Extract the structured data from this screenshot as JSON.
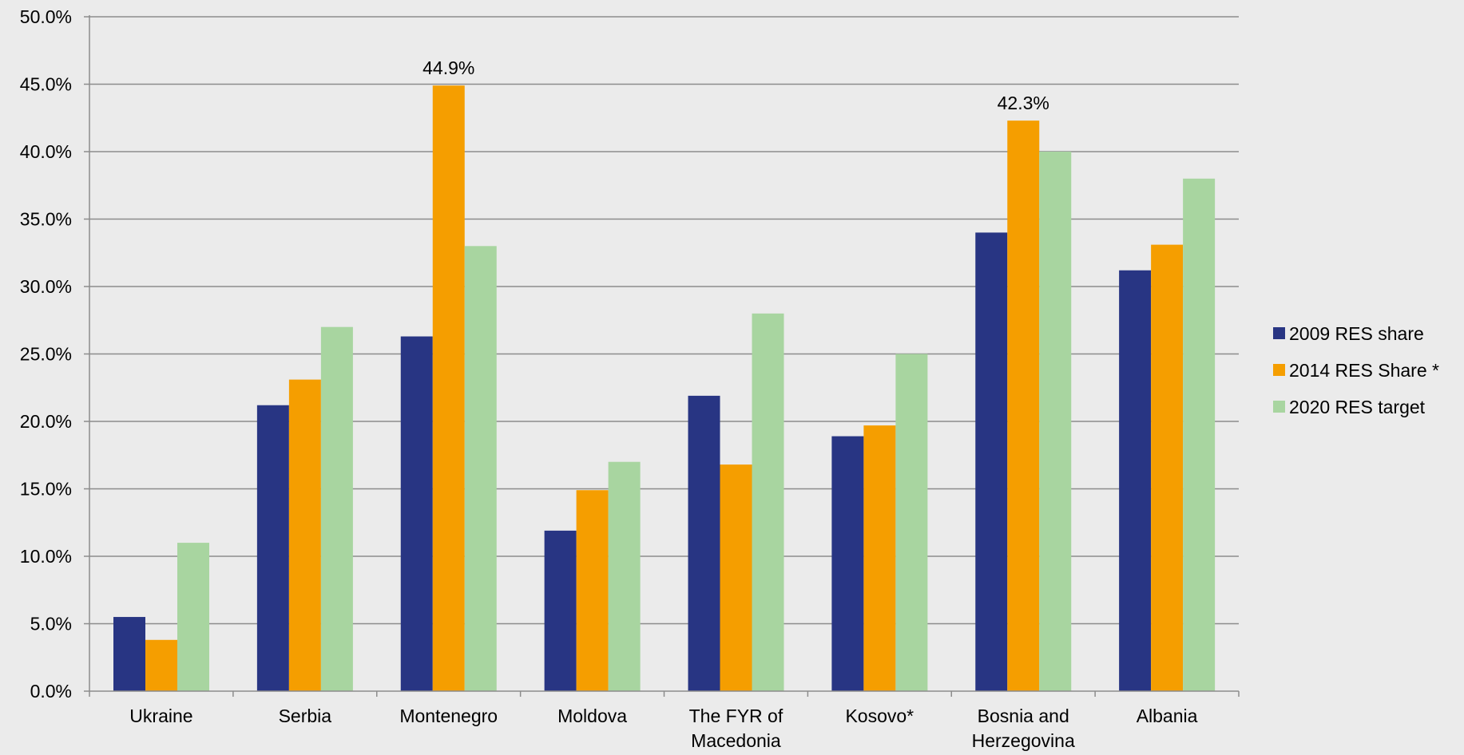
{
  "chart_data": {
    "type": "bar",
    "title": "",
    "xlabel": "",
    "ylabel": "",
    "categories": [
      "Ukraine",
      "Serbia",
      "Montenegro",
      "Moldova",
      "The FYR of Macedonia",
      "Kosovo*",
      "Bosnia and Herzegovina",
      "Albania"
    ],
    "category_lines": [
      [
        "Ukraine"
      ],
      [
        "Serbia"
      ],
      [
        "Montenegro"
      ],
      [
        "Moldova"
      ],
      [
        "The FYR of",
        "Macedonia"
      ],
      [
        "Kosovo*"
      ],
      [
        "Bosnia and",
        "Herzegovina"
      ],
      [
        "Albania"
      ]
    ],
    "series": [
      {
        "name": "2009 RES share",
        "color": "#283583",
        "values": [
          5.5,
          21.2,
          26.3,
          11.9,
          21.9,
          18.9,
          34.0,
          31.2
        ]
      },
      {
        "name": "2014 RES Share *",
        "color": "#f59e00",
        "values": [
          3.8,
          23.1,
          44.9,
          14.9,
          16.8,
          19.7,
          42.3,
          33.1
        ]
      },
      {
        "name": "2020 RES target",
        "color": "#a8d5a0",
        "values": [
          11.0,
          27.0,
          33.0,
          17.0,
          28.0,
          25.0,
          40.0,
          38.0
        ]
      }
    ],
    "ylim": [
      0,
      50
    ],
    "yticks": [
      "0.0%",
      "5.0%",
      "10.0%",
      "15.0%",
      "20.0%",
      "25.0%",
      "30.0%",
      "35.0%",
      "40.0%",
      "45.0%",
      "50.0%"
    ],
    "ytick_values": [
      0,
      5,
      10,
      15,
      20,
      25,
      30,
      35,
      40,
      45,
      50
    ],
    "data_labels": [
      {
        "series": 1,
        "category": 2,
        "text": "44.9%"
      },
      {
        "series": 1,
        "category": 6,
        "text": "42.3%"
      }
    ],
    "grid": true,
    "legend": "right"
  }
}
